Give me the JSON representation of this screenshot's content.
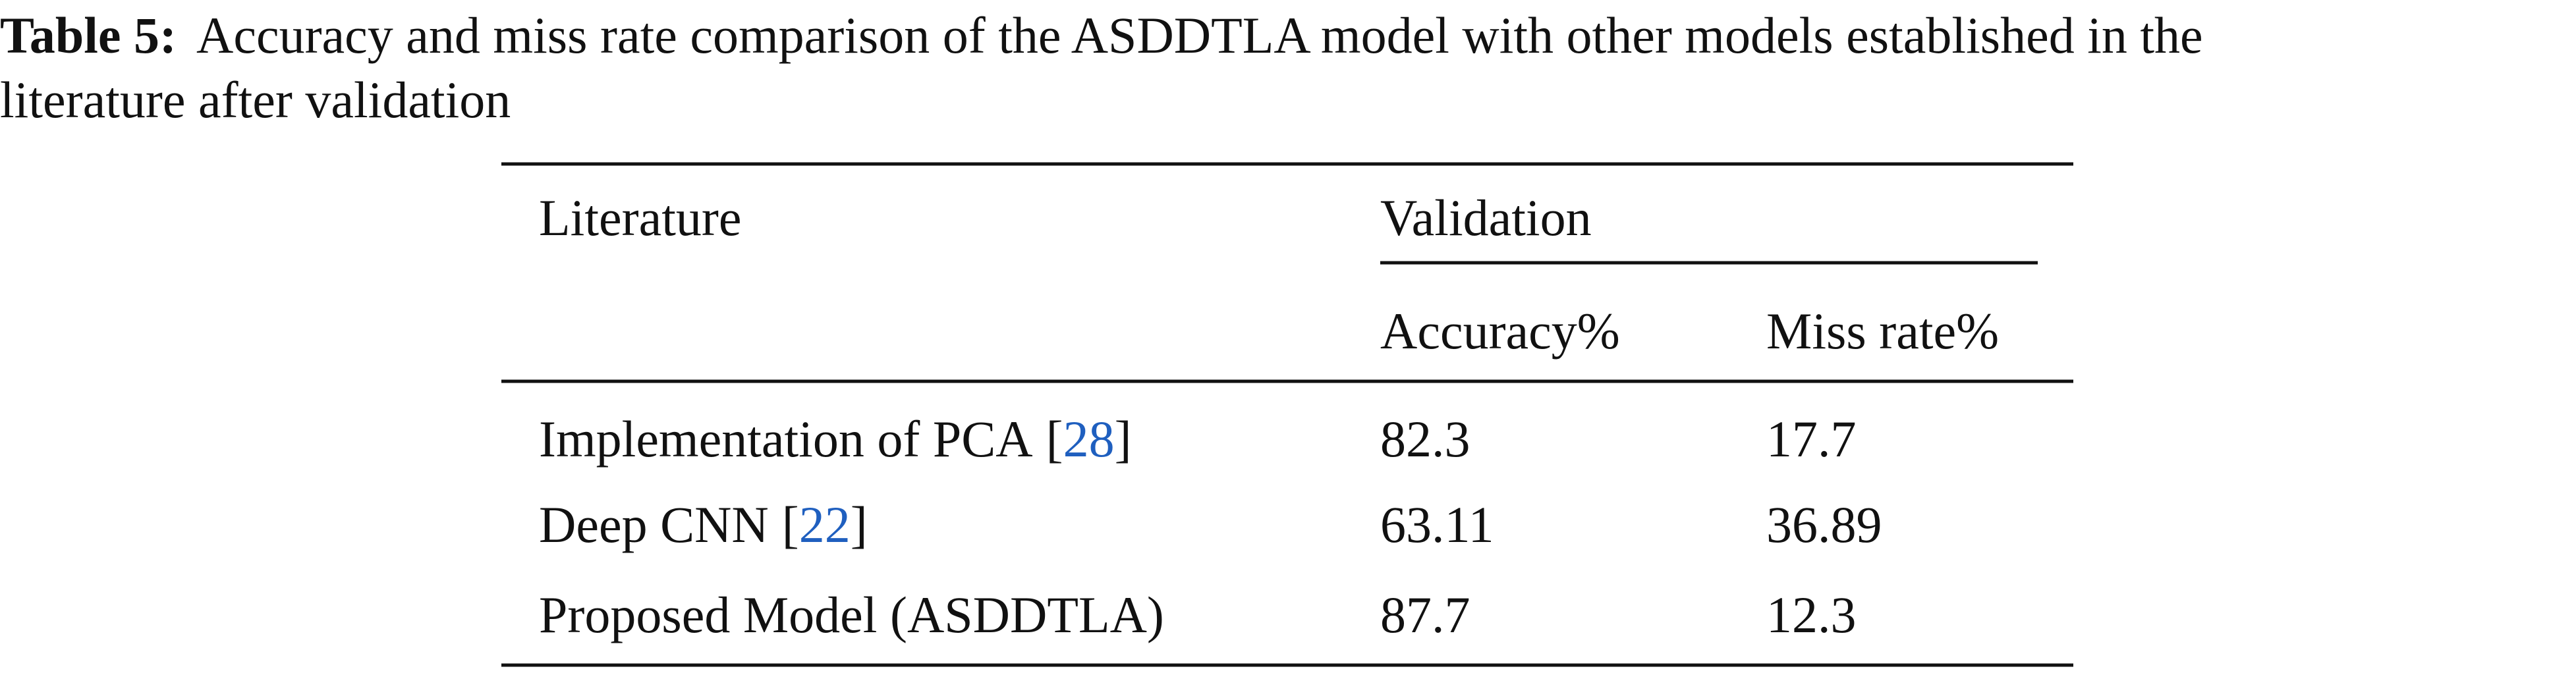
{
  "caption": {
    "label": "Table 5:",
    "lines": [
      "Accuracy and miss rate comparison of the ASDDTLA model with other models established in the",
      "literature after validation"
    ]
  },
  "table": {
    "header": {
      "literature": "Literature",
      "group": "Validation",
      "columns": [
        "Accuracy%",
        "Miss rate%"
      ]
    },
    "rows": [
      {
        "name": "Implementation of PCA",
        "cite": [
          "[",
          "28",
          "]"
        ],
        "cells": [
          "82.3",
          "17.7"
        ]
      },
      {
        "name": "Deep CNN",
        "cite": [
          "[",
          "22",
          "]"
        ],
        "cells": [
          "63.11",
          "36.89"
        ]
      },
      {
        "name": "Proposed Model (ASDDTLA)",
        "cite": null,
        "cells": [
          "87.7",
          "12.3"
        ]
      }
    ]
  }
}
